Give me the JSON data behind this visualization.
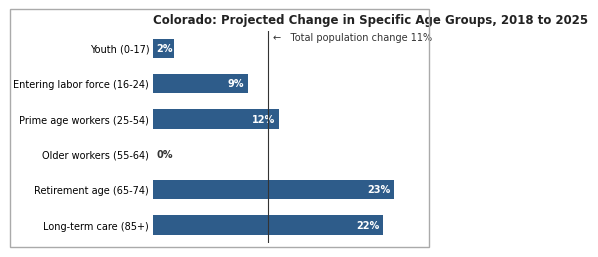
{
  "title": "Colorado: Projected Change in Specific Age Groups, 2018 to 2025",
  "categories": [
    "Long-term care (85+)",
    "Retirement age (65-74)",
    "Older workers (55-64)",
    "Prime age workers (25-54)",
    "Entering labor force (16-24)",
    "Youth (0-17)"
  ],
  "values": [
    22,
    23,
    0,
    12,
    9,
    2
  ],
  "bar_color": "#2E5C8A",
  "label_color_inside": "#ffffff",
  "label_color_outside": "#333333",
  "total_pop_change": 11,
  "annotation_text": "←   Total population change 11%",
  "xlim": [
    0,
    26
  ],
  "background_color": "#ffffff",
  "title_fontsize": 8.5,
  "label_fontsize": 7,
  "bar_label_fontsize": 7
}
